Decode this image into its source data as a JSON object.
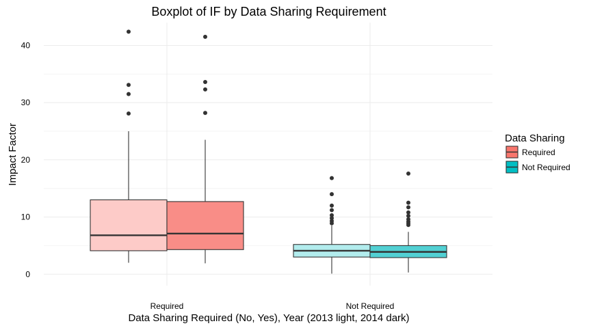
{
  "chart_data": {
    "type": "boxplot",
    "title": "Boxplot of IF by Data Sharing Requirement",
    "xlabel": "Data Sharing Required (No, Yes), Year (2013 light, 2014 dark)",
    "ylabel": "Impact Factor",
    "ylim": [
      -2,
      44
    ],
    "yticks": [
      0,
      10,
      20,
      30,
      40
    ],
    "categories": [
      "Required",
      "Not Required"
    ],
    "legend": {
      "title": "Data Sharing",
      "placement": "right",
      "entries": [
        {
          "label": "Required",
          "color": "#f8766d"
        },
        {
          "label": "Not Required",
          "color": "#00bfc4"
        }
      ]
    },
    "grid": true,
    "boxes": [
      {
        "category": "Required",
        "year": "2013",
        "fill": "#fdcbc8",
        "min": 2.0,
        "q1": 4.1,
        "median": 6.8,
        "q3": 13.0,
        "max": 25.0,
        "outliers": [
          28.1,
          31.5,
          33.1,
          42.4
        ]
      },
      {
        "category": "Required",
        "year": "2014",
        "fill": "#f98d87",
        "min": 1.9,
        "q1": 4.3,
        "median": 7.1,
        "q3": 12.7,
        "max": 23.5,
        "outliers": [
          28.2,
          32.3,
          33.6,
          41.5
        ]
      },
      {
        "category": "Not Required",
        "year": "2013",
        "fill": "#b2eced",
        "min": 0.1,
        "q1": 3.0,
        "median": 4.1,
        "q3": 5.2,
        "max": 8.5,
        "outliers": [
          8.9,
          9.3,
          9.8,
          10.3,
          11.2,
          12.0,
          14.0,
          16.8
        ]
      },
      {
        "category": "Not Required",
        "year": "2014",
        "fill": "#52d0d3",
        "min": 0.3,
        "q1": 2.9,
        "median": 3.9,
        "q3": 5.0,
        "max": 7.4,
        "outliers": [
          8.6,
          8.9,
          9.2,
          9.6,
          10.2,
          10.8,
          11.7,
          12.5,
          17.6
        ]
      }
    ]
  }
}
